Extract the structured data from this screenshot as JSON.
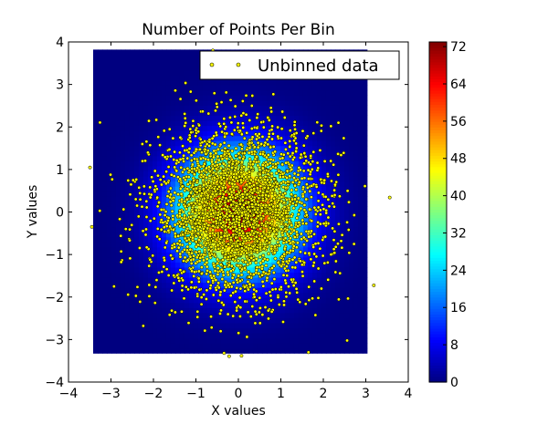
{
  "chart_data": {
    "type": "heatmap",
    "title": "Number of Points Per Bin",
    "xlabel": "X values",
    "ylabel": "Y values",
    "xlim": [
      -4,
      4
    ],
    "ylim": [
      -4,
      4
    ],
    "xticks": [
      "−4",
      "−3",
      "−2",
      "−1",
      "0",
      "1",
      "2",
      "3",
      "4"
    ],
    "yticks": [
      "−4",
      "−3",
      "−2",
      "−1",
      "0",
      "1",
      "2",
      "3",
      "4"
    ],
    "xtick_values": [
      -4,
      -3,
      -2,
      -1,
      0,
      1,
      2,
      3,
      4
    ],
    "ytick_values": [
      -4,
      -3,
      -2,
      -1,
      0,
      1,
      2,
      3,
      4
    ],
    "heatmap": {
      "extent": [
        -3.42,
        3.03,
        -3.32,
        3.82
      ],
      "vmin": 0,
      "vmax": 73,
      "colormap": "jet",
      "density_peak": 73,
      "density_sigma": 0.95
    },
    "colorbar": {
      "ticks": [
        "0",
        "8",
        "16",
        "24",
        "32",
        "40",
        "48",
        "56",
        "64",
        "72"
      ],
      "tick_values": [
        0,
        8,
        16,
        24,
        32,
        40,
        48,
        56,
        64,
        72
      ]
    },
    "scatter": {
      "name": "Unbinned data",
      "color": "#ffff00",
      "edge_color": "#000000",
      "count": 3000,
      "mean": [
        0,
        0
      ],
      "std": 1.0,
      "seed": 7,
      "outliers": [
        [
          -3.45,
          -0.35
        ],
        [
          1.65,
          -3.3
        ],
        [
          -0.6,
          3.8
        ]
      ]
    },
    "legend": {
      "label": "Unbinned data",
      "placement": "upper-right"
    }
  }
}
